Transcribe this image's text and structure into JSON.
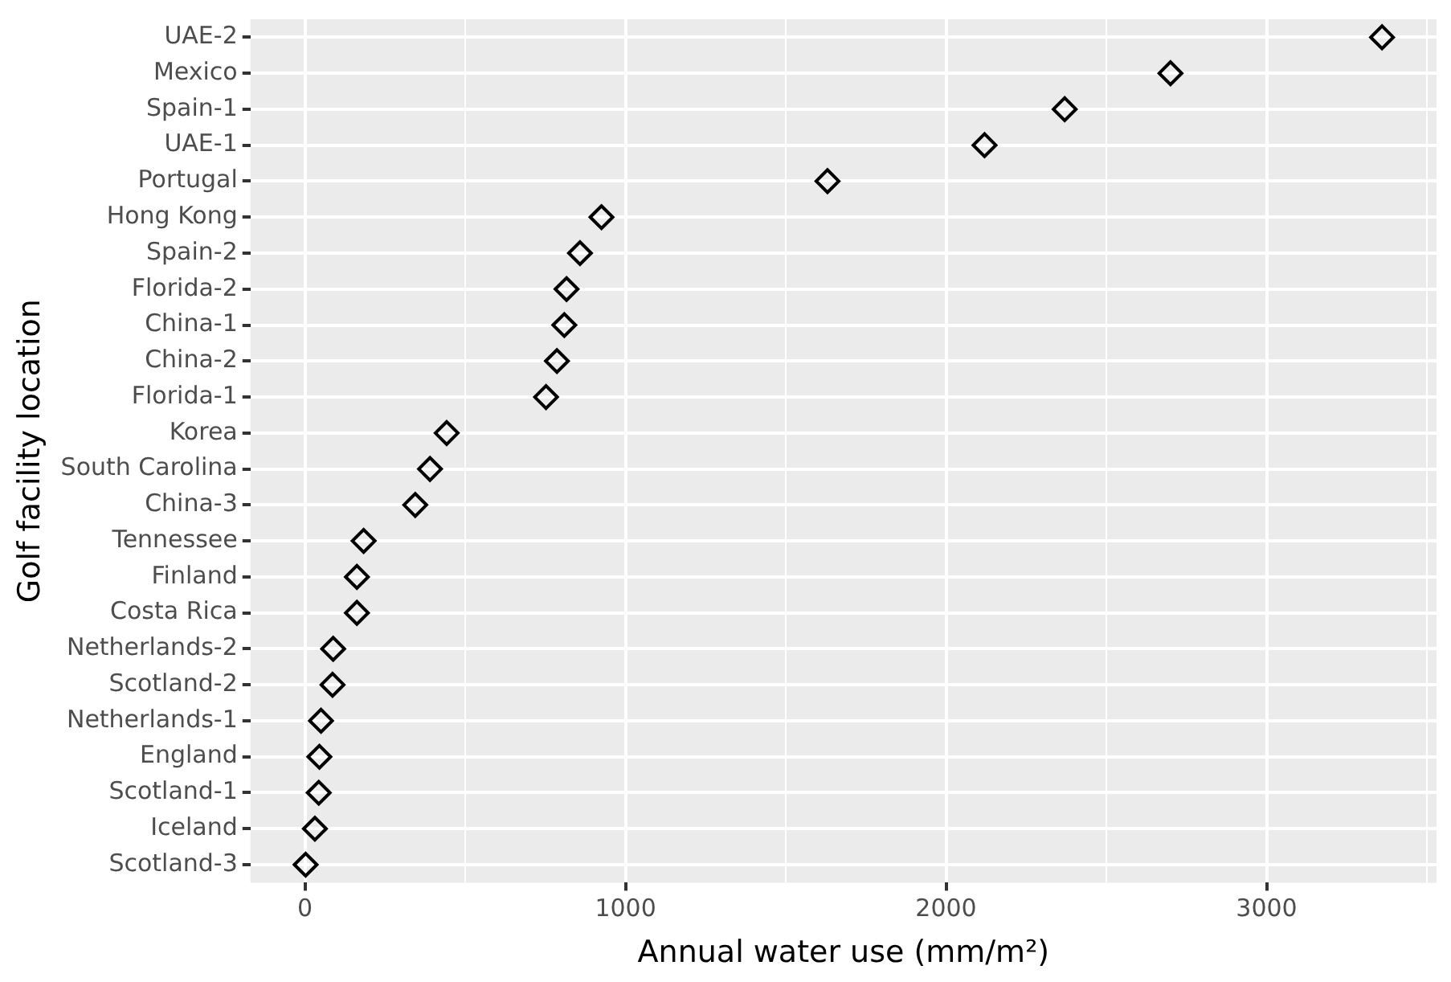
{
  "chart_data": {
    "type": "scatter",
    "xlabel": "Annual water use (mm/m²)",
    "ylabel": "Golf facility location",
    "categories": [
      "UAE-2",
      "Mexico",
      "Spain-1",
      "UAE-1",
      "Portugal",
      "Hong Kong",
      "Spain-2",
      "Florida-2",
      "China-1",
      "China-2",
      "Florida-1",
      "Korea",
      "South Carolina",
      "China-3",
      "Tennessee",
      "Finland",
      "Costa Rica",
      "Netherlands-2",
      "Scotland-2",
      "Netherlands-1",
      "England",
      "Scotland-1",
      "Iceland",
      "Scotland-3"
    ],
    "orientation": "horizontal",
    "series": [
      {
        "color": "#000000",
        "values": [
          3360,
          2700,
          2370,
          2120,
          1630,
          925,
          858,
          816,
          809,
          786,
          752,
          442,
          390,
          344,
          183,
          162,
          162,
          88,
          86,
          50,
          45,
          43,
          31,
          2
        ]
      }
    ],
    "xlim": [
      -170,
      3530
    ],
    "xticks": [
      0,
      {
        "value": 500,
        "label": null
      },
      1000,
      {
        "value": 1500,
        "label": null
      },
      2000,
      {
        "value": 2500,
        "label": null
      },
      3000,
      {
        "value": 3500,
        "label": null
      }
    ],
    "marker": "diamond",
    "grid": true,
    "legend": false
  }
}
